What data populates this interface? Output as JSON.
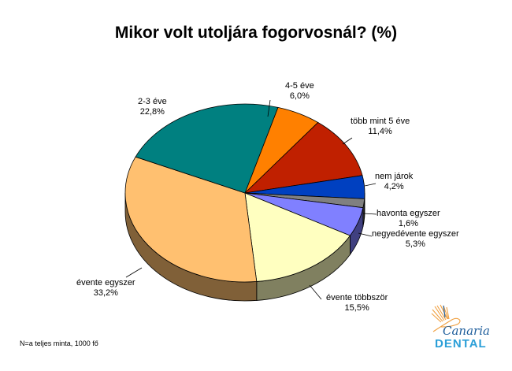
{
  "title": "Mikor volt utoljára fogorvosnál? (%)",
  "note": "N=a teljes minta, 1000 fő",
  "logo": {
    "line1": "Canaria",
    "line2": "DENTAL"
  },
  "chart_data": {
    "type": "pie",
    "title": "Mikor volt utoljára fogorvosnál? (%)",
    "style": "3d",
    "legend": "none (data labels on slices)",
    "categories": [
      "4-5 éve",
      "több mint 5 éve",
      "nem járok",
      "havonta egyszer",
      "negyedévente egyszer",
      "évente többször",
      "évente egyszer",
      "2-3 éve"
    ],
    "values": [
      6.0,
      11.4,
      4.2,
      1.6,
      5.3,
      15.5,
      33.2,
      22.8
    ],
    "value_labels": [
      "6,0%",
      "11,4%",
      "4,2%",
      "1,6%",
      "5,3%",
      "15,5%",
      "33,2%",
      "22,8%"
    ],
    "colors": [
      "#ff8000",
      "#c02000",
      "#0040c0",
      "#808080",
      "#8080ff",
      "#ffffc0",
      "#ffc070",
      "#008080"
    ],
    "annotation": "N=a teljes minta, 1000 fő"
  }
}
